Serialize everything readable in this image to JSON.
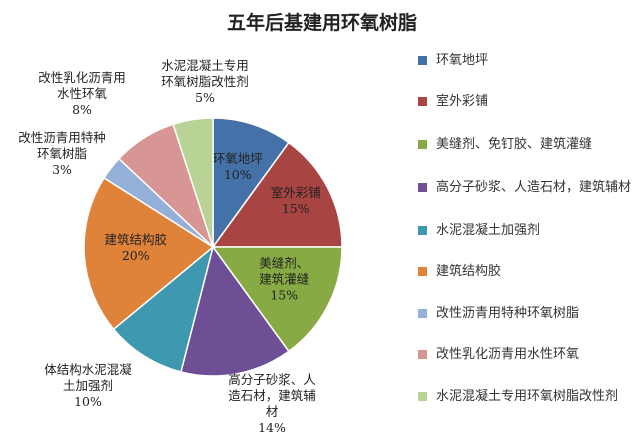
{
  "chart_data": {
    "type": "pie",
    "title": "五年后基建用环氧树脂",
    "legend_position": "right",
    "slices": [
      {
        "legend": "环氧地坪",
        "label": [
          "环氧地坪"
        ],
        "value": 10,
        "value_label": "10%",
        "color": "#4472a8"
      },
      {
        "legend": "室外彩铺",
        "label": [
          "室外彩铺"
        ],
        "value": 15,
        "value_label": "15%",
        "color": "#a84442"
      },
      {
        "legend": "美缝剂、免钉胶、建筑灌缝",
        "label": [
          "美缝剂、",
          "建筑灌缝"
        ],
        "value": 15,
        "value_label": "15%",
        "color": "#88aa44"
      },
      {
        "legend": "高分子砂浆、人造石材，建筑辅材",
        "label": [
          "高分子砂浆、人",
          "造石材，建筑辅",
          "材"
        ],
        "value": 14,
        "value_label": "14%",
        "color": "#6e4f96"
      },
      {
        "legend": "水泥混凝土加强剂",
        "label": [
          "体结构水泥混凝",
          "土加强剂"
        ],
        "value": 10,
        "value_label": "10%",
        "color": "#3d98b0"
      },
      {
        "legend": "建筑结构胶",
        "label": [
          "建筑结构胶"
        ],
        "value": 20,
        "value_label": "20%",
        "color": "#e0833a"
      },
      {
        "legend": "改性沥青用特种环氧树脂",
        "label": [
          "改性沥青用特种",
          "环氧树脂"
        ],
        "value": 3,
        "value_label": "3%",
        "color": "#95b0d8"
      },
      {
        "legend": "改性乳化沥青用水性环氧",
        "label": [
          "改性乳化沥青用",
          "水性环氧"
        ],
        "value": 8,
        "value_label": "8%",
        "color": "#d79594"
      },
      {
        "legend": "水泥混凝土专用环氧树脂改性剂",
        "label": [
          "水泥混凝土专用",
          "环氧树脂改性剂"
        ],
        "value": 5,
        "value_label": "5%",
        "color": "#b9d296"
      }
    ]
  }
}
